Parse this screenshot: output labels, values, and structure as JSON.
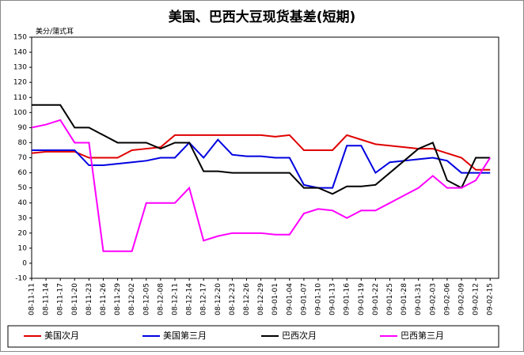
{
  "chart_data": {
    "type": "line",
    "title": "美国、巴西大豆现货基差(短期)",
    "y_label": "美分/蒲式耳",
    "categories": [
      "08-11-11",
      "08-11-14",
      "08-11-17",
      "08-11-20",
      "08-11-23",
      "08-11-26",
      "08-11-29",
      "08-12-02",
      "08-12-05",
      "08-12-08",
      "08-12-11",
      "08-12-14",
      "08-12-17",
      "08-12-20",
      "08-12-23",
      "08-12-26",
      "08-12-29",
      "09-01-01",
      "09-01-04",
      "09-01-07",
      "09-01-10",
      "09-01-13",
      "09-01-16",
      "09-01-19",
      "09-01-22",
      "09-01-25",
      "09-01-28",
      "09-01-31",
      "09-02-03",
      "09-02-06",
      "09-02-09",
      "09-02-12",
      "09-02-15"
    ],
    "series": [
      {
        "name": "美国次月",
        "color": "#e00000",
        "values": [
          73,
          74,
          74,
          74,
          70,
          70,
          70,
          75,
          76,
          77,
          85,
          85,
          85,
          85,
          85,
          85,
          85,
          84,
          85,
          75,
          75,
          75,
          85,
          82,
          79,
          78,
          77,
          76,
          76,
          73,
          70,
          62,
          62
        ]
      },
      {
        "name": "美国第三月",
        "color": "#0000e0",
        "values": [
          75,
          75,
          75,
          75,
          65,
          65,
          66,
          67,
          68,
          70,
          70,
          80,
          70,
          82,
          72,
          71,
          71,
          70,
          70,
          52,
          50,
          50,
          78,
          78,
          60,
          67,
          68,
          69,
          70,
          68,
          60,
          60,
          60
        ]
      },
      {
        "name": "巴西次月",
        "color": "#000000",
        "values": [
          105,
          105,
          105,
          90,
          90,
          85,
          80,
          80,
          80,
          76,
          80,
          80,
          61,
          61,
          60,
          60,
          60,
          60,
          60,
          50,
          50,
          46,
          51,
          51,
          52,
          60,
          68,
          76,
          80,
          55,
          50,
          70,
          70
        ]
      },
      {
        "name": "巴西第三月",
        "color": "#ff00ff",
        "values": [
          90,
          92,
          95,
          80,
          80,
          8,
          8,
          8,
          40,
          40,
          40,
          50,
          15,
          18,
          20,
          20,
          20,
          19,
          19,
          33,
          36,
          35,
          30,
          35,
          35,
          40,
          45,
          50,
          58,
          50,
          50,
          55,
          70
        ]
      }
    ],
    "ylim": [
      -10,
      150
    ],
    "yticks": [
      -10,
      0,
      10,
      20,
      30,
      40,
      50,
      60,
      70,
      80,
      90,
      100,
      110,
      120,
      130,
      140,
      150
    ]
  }
}
